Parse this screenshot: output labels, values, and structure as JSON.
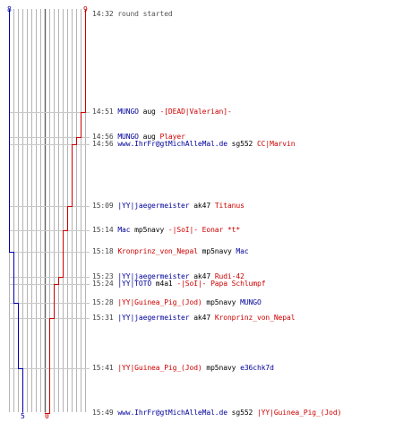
{
  "colors": {
    "blue_team": "#0000aa",
    "red_team": "#cc0000",
    "gridline": "#b4b4b4",
    "center_line": "#606060",
    "timestamp": "#444444",
    "event_line": "#c8c8c8"
  },
  "scores": {
    "blue_start": "8",
    "red_start": "9",
    "blue_end": "5",
    "red_end": "0"
  },
  "events": [
    {
      "time": "14:32",
      "message": "round started"
    },
    {
      "time": "14:51",
      "killer": "MUNGO",
      "killer_team": "blue",
      "weapon": "aug",
      "victim": "-[DEAD|Valerian]-",
      "victim_team": "red"
    },
    {
      "time": "14:56",
      "killer": "MUNGO",
      "killer_team": "blue",
      "weapon": "aug",
      "victim": "Player",
      "victim_team": "red"
    },
    {
      "time": "14:56",
      "killer": "www.IhrFr@gtMichAlleMal.de",
      "killer_team": "blue",
      "weapon": "sg552",
      "victim": "CC|Marvin",
      "victim_team": "red"
    },
    {
      "time": "15:09",
      "killer": "|YY|jaegermeister",
      "killer_team": "blue",
      "weapon": "ak47",
      "victim": "Titanus",
      "victim_team": "red"
    },
    {
      "time": "15:14",
      "killer": "Mac",
      "killer_team": "blue",
      "weapon": "mp5navy",
      "victim": "-|SoI|- Eonar *t*",
      "victim_team": "red"
    },
    {
      "time": "15:18",
      "killer": "Kronprinz_von_Nepal",
      "killer_team": "red",
      "weapon": "mp5navy",
      "victim": "Mac",
      "victim_team": "blue"
    },
    {
      "time": "15:23",
      "killer": "|YY|jaegermeister",
      "killer_team": "blue",
      "weapon": "ak47",
      "victim": "Rudi-42",
      "victim_team": "red"
    },
    {
      "time": "15:24",
      "killer": "|YY|TOTO",
      "killer_team": "blue",
      "weapon": "m4a1",
      "victim": "-|SoI|- Papa Schlumpf",
      "victim_team": "red"
    },
    {
      "time": "15:28",
      "killer": "|YY|Guinea_Pig_(Jod)",
      "killer_team": "red",
      "weapon": "mp5navy",
      "victim": "MUNGO",
      "victim_team": "blue"
    },
    {
      "time": "15:31",
      "killer": "|YY|jaegermeister",
      "killer_team": "blue",
      "weapon": "ak47",
      "victim": "Kronprinz_von_Nepal",
      "victim_team": "red"
    },
    {
      "time": "15:41",
      "killer": "|YY|Guinea_Pig_(Jod)",
      "killer_team": "red",
      "weapon": "mp5navy",
      "victim": "e36chk7d",
      "victim_team": "blue"
    },
    {
      "time": "15:49",
      "killer": "www.IhrFr@gtMichAlleMal.de",
      "killer_team": "blue",
      "weapon": "sg552",
      "victim": "|YY|Guinea_Pig_(Jod)",
      "victim_team": "red"
    }
  ]
}
